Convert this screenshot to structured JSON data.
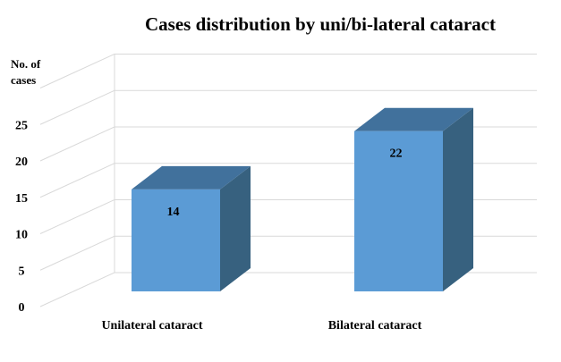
{
  "chart_data": {
    "type": "bar",
    "title": "Cases distribution by uni/bi-lateral cataract",
    "ylabel_lines": [
      "No. of",
      "cases"
    ],
    "xlabel": "",
    "categories": [
      "Unilateral cataract",
      "Bilateral cataract"
    ],
    "values": [
      14,
      22
    ],
    "data_labels": [
      "14",
      "22"
    ],
    "yticks": [
      "0",
      "5",
      "10",
      "15",
      "20",
      "25"
    ],
    "ylim": [
      0,
      30
    ],
    "grid": true,
    "legend": "none",
    "style": "3d-column",
    "colors": {
      "front": "#5b9bd5",
      "top": "#41719c",
      "side": "#37617f",
      "grid": "#d9d9d9"
    }
  }
}
